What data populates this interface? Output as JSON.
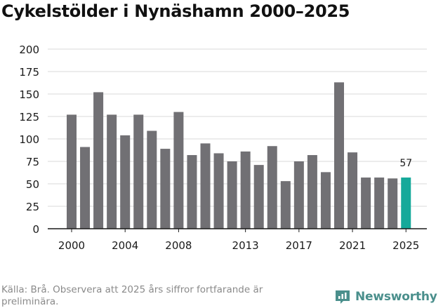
{
  "title": "Cykelstölder i Nynäshamn 2000–2025",
  "source": "Källa: Brå. Observera att 2025 års siffror fortfarande är preliminära.",
  "brand": {
    "name": "Newsworthy",
    "icon": "newsworthy-logo-icon"
  },
  "colors": {
    "bar": "#717074",
    "highlight": "#15a99a",
    "grid": "#d9d9d9",
    "axis": "#1a1a1a",
    "text": "#1a1a1a",
    "brand": "#4a8f8c"
  },
  "chart_data": {
    "type": "bar",
    "title": "Cykelstölder i Nynäshamn 2000–2025",
    "xlabel": "",
    "ylabel": "",
    "ylim": [
      0,
      200
    ],
    "yticks": [
      0,
      25,
      50,
      75,
      100,
      125,
      150,
      175,
      200
    ],
    "xticks": [
      "2000",
      "2004",
      "2008",
      "2013",
      "2017",
      "2021",
      "2025"
    ],
    "grid": true,
    "categories": [
      "2000",
      "2001",
      "2002",
      "2003",
      "2004",
      "2005",
      "2006",
      "2007",
      "2008",
      "2009",
      "2010",
      "2011",
      "2012",
      "2013",
      "2014",
      "2015",
      "2016",
      "2017",
      "2018",
      "2019",
      "2020",
      "2021",
      "2022",
      "2023",
      "2024",
      "2025"
    ],
    "values": [
      127,
      91,
      152,
      127,
      104,
      127,
      109,
      89,
      130,
      82,
      95,
      84,
      75,
      86,
      71,
      92,
      53,
      75,
      82,
      63,
      163,
      85,
      57,
      57,
      56,
      57
    ],
    "highlight": {
      "category": "2025",
      "label": "57"
    }
  }
}
